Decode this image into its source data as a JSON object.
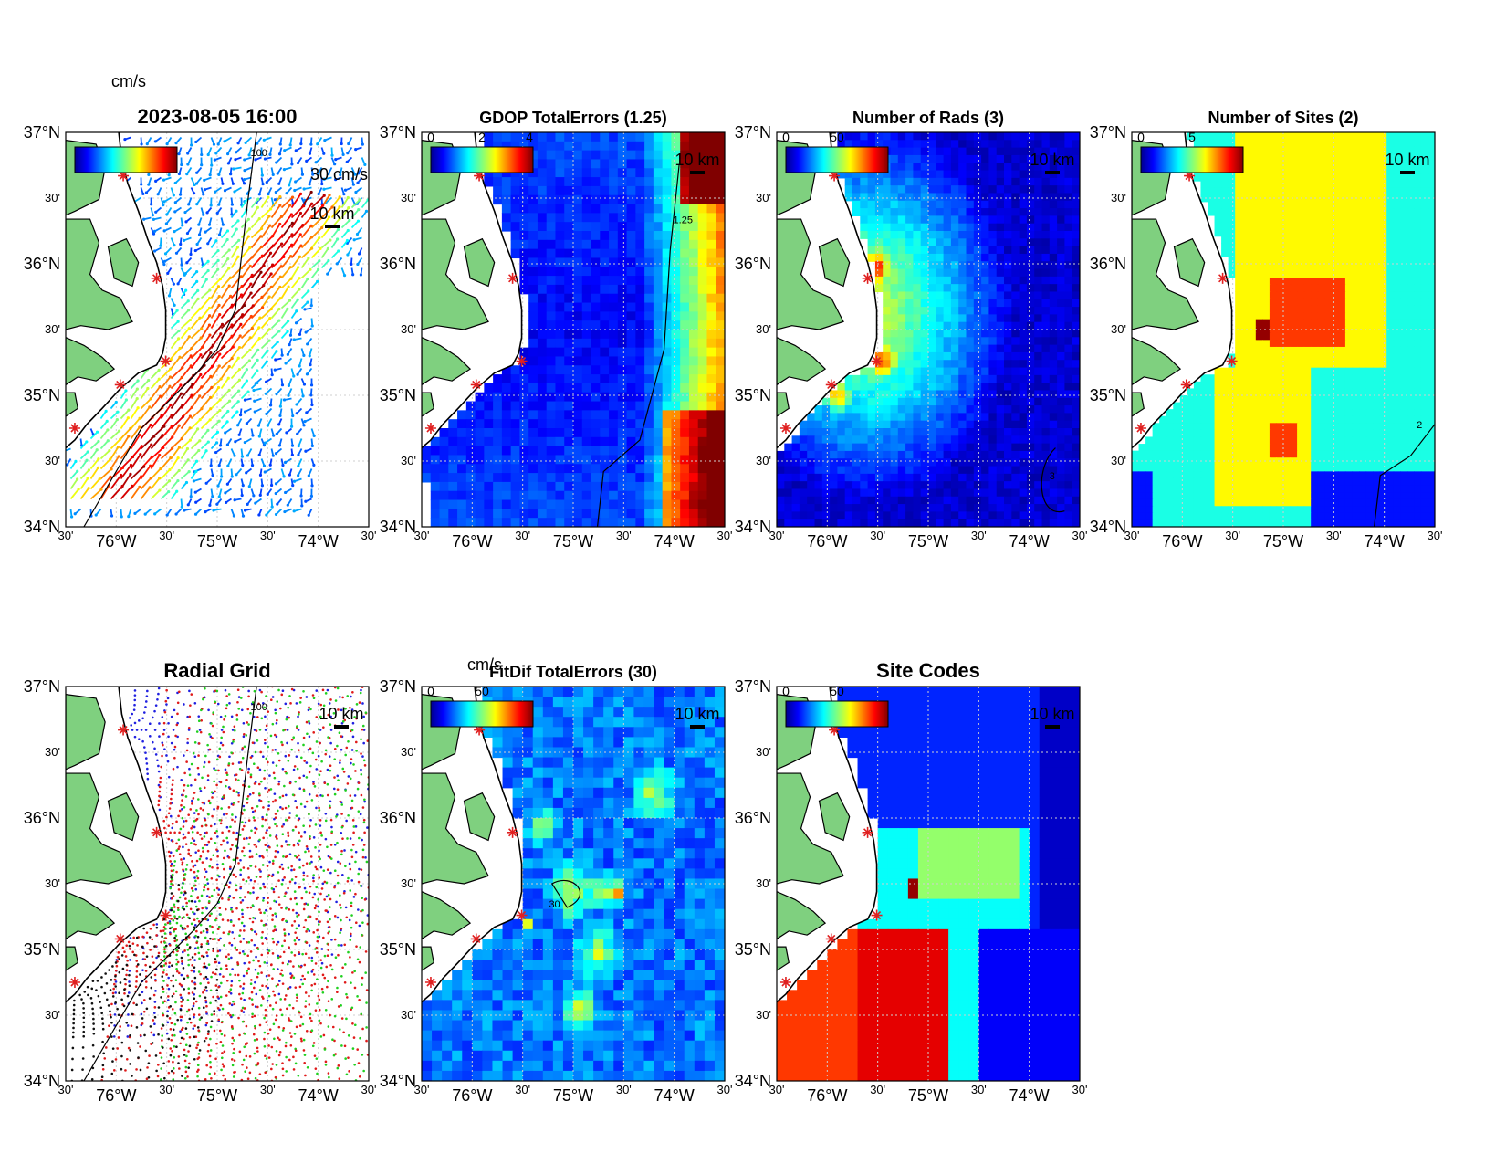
{
  "figure": {
    "lat_ticks": [
      "37°N",
      "30'",
      "36°N",
      "30'",
      "35°N",
      "30'",
      "34°N"
    ],
    "lon_ticks": [
      "30'",
      "76°W",
      "30'",
      "75°W",
      "30'",
      "74°W",
      "30'"
    ],
    "scale_label": "10 km",
    "colors": {
      "land": "#7fd07f",
      "coast": "#000000",
      "site_marker": "#e02020",
      "deep_blue": "#00008f",
      "cyan": "#00e5ff",
      "yellow": "#ffff00",
      "orange": "#ff8000",
      "red": "#ff1a00",
      "dark_red": "#800000"
    }
  },
  "panels": [
    {
      "id": "currents",
      "title": "2023-08-05 16:00",
      "kind": "vectors",
      "colorbar_unit": "cm/s",
      "colorbar_ticks": [],
      "overlay_label": "30 cm/s",
      "contour_label": "100",
      "colormap": "jet"
    },
    {
      "id": "gdop",
      "title": "GDOP TotalErrors (1.25)",
      "kind": "field",
      "colorbar_unit": "",
      "colorbar_ticks": [
        "0",
        "2",
        "4"
      ],
      "contour_label": "1.25",
      "colormap": "jet"
    },
    {
      "id": "rads",
      "title": "Number of Rads (3)",
      "kind": "field",
      "colorbar_unit": "",
      "colorbar_ticks": [
        "0",
        "50"
      ],
      "contour_label": "3",
      "colormap": "jet"
    },
    {
      "id": "sites",
      "title": "Number of Sites (2)",
      "kind": "field",
      "colorbar_unit": "",
      "colorbar_ticks": [
        "0",
        "5"
      ],
      "contour_label": "2",
      "colormap": "jet"
    },
    {
      "id": "radgrid",
      "title": "Radial Grid",
      "kind": "radial",
      "colorbar_unit": "",
      "colorbar_ticks": [],
      "contour_label": "100",
      "colormap": "none"
    },
    {
      "id": "fitdif",
      "title": "FitDif TotalErrors (30)",
      "kind": "field",
      "colorbar_unit": "cm/s",
      "colorbar_ticks": [
        "0",
        "50"
      ],
      "contour_label": "30",
      "colormap": "jet"
    },
    {
      "id": "sitecodes",
      "title": "Site Codes",
      "kind": "field",
      "colorbar_unit": "",
      "colorbar_ticks": [
        "0",
        "50"
      ],
      "contour_label": "",
      "colormap": "jet"
    }
  ]
}
